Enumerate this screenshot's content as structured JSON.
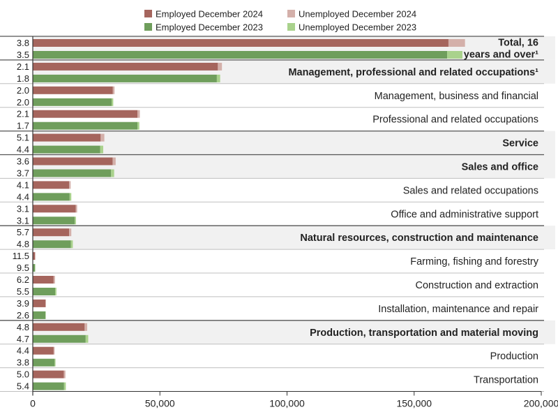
{
  "chart_data": {
    "type": "bar",
    "orientation": "horizontal",
    "stacked": true,
    "xlim": [
      0,
      200000
    ],
    "x_ticks": [
      0,
      50000,
      100000,
      150000,
      200000
    ],
    "x_tick_labels": [
      "0",
      "50,000",
      "100,000",
      "150,000",
      "200,000"
    ],
    "legend": {
      "placement": "top",
      "items": [
        {
          "label": "Employed December 2024",
          "color": "#a5655d"
        },
        {
          "label": "Unemployed December 2024",
          "color": "#d4b0aa"
        },
        {
          "label": "Employed December 2023",
          "color": "#6f9e5c"
        },
        {
          "label": "Unemployed December 2023",
          "color": "#a9d28c"
        }
      ]
    },
    "colors": {
      "employed_2024": "#a5655d",
      "unemployed_2024": "#d4b0aa",
      "employed_2023": "#6f9e5c",
      "unemployed_2023": "#a9d28c",
      "major_band": "#f1f1f1",
      "divider_major": "#555555",
      "divider_minor": "#bfbfbf",
      "axis": "#333333"
    },
    "categories": [
      {
        "label_lines": [
          "Total, 16",
          "years and over¹"
        ],
        "major": true,
        "rate_2024": "3.8",
        "rate_2023": "3.5",
        "employed_2024": 163500,
        "unemployed_2024": 6500,
        "employed_2023": 163000,
        "unemployed_2023": 6000
      },
      {
        "label_lines": [
          "Management, professional and related occupations¹"
        ],
        "major": true,
        "rate_2024": "2.1",
        "rate_2023": "1.8",
        "employed_2024": 72800,
        "unemployed_2024": 1600,
        "employed_2023": 72400,
        "unemployed_2023": 1300
      },
      {
        "label_lines": [
          "Management, business and financial"
        ],
        "major": false,
        "rate_2024": "2.0",
        "rate_2023": "2.0",
        "employed_2024": 31500,
        "unemployed_2024": 650,
        "employed_2023": 31000,
        "unemployed_2023": 650
      },
      {
        "label_lines": [
          "Professional and related occupations"
        ],
        "major": false,
        "rate_2024": "2.1",
        "rate_2023": "1.7",
        "employed_2024": 41200,
        "unemployed_2024": 900,
        "employed_2023": 41200,
        "unemployed_2023": 700
      },
      {
        "label_lines": [
          "Service"
        ],
        "major": true,
        "rate_2024": "5.1",
        "rate_2023": "4.4",
        "employed_2024": 26700,
        "unemployed_2024": 1450,
        "employed_2023": 26500,
        "unemployed_2023": 1200
      },
      {
        "label_lines": [
          "Sales and office"
        ],
        "major": true,
        "rate_2024": "3.6",
        "rate_2023": "3.7",
        "employed_2024": 31400,
        "unemployed_2024": 1200,
        "employed_2023": 30800,
        "unemployed_2023": 1200
      },
      {
        "label_lines": [
          "Sales and related occupations"
        ],
        "major": false,
        "rate_2024": "4.1",
        "rate_2023": "4.4",
        "employed_2024": 14300,
        "unemployed_2024": 600,
        "employed_2023": 14500,
        "unemployed_2023": 650
      },
      {
        "label_lines": [
          "Office and administrative support"
        ],
        "major": false,
        "rate_2024": "3.1",
        "rate_2023": "3.1",
        "employed_2024": 16900,
        "unemployed_2024": 550,
        "employed_2023": 16500,
        "unemployed_2023": 500
      },
      {
        "label_lines": [
          "Natural resources, construction and maintenance"
        ],
        "major": true,
        "rate_2024": "5.7",
        "rate_2023": "4.8",
        "employed_2024": 14300,
        "unemployed_2024": 850,
        "employed_2023": 15000,
        "unemployed_2023": 750
      },
      {
        "label_lines": [
          "Farming, fishing and forestry"
        ],
        "major": false,
        "rate_2024": "11.5",
        "rate_2023": "9.5",
        "employed_2024": 900,
        "unemployed_2024": 120,
        "employed_2023": 900,
        "unemployed_2023": 100
      },
      {
        "label_lines": [
          "Construction and extraction"
        ],
        "major": false,
        "rate_2024": "6.2",
        "rate_2023": "5.5",
        "employed_2024": 8200,
        "unemployed_2024": 540,
        "employed_2023": 8800,
        "unemployed_2023": 500
      },
      {
        "label_lines": [
          "Installation, maintenance and repair"
        ],
        "major": false,
        "rate_2024": "3.9",
        "rate_2023": "2.6",
        "employed_2024": 5000,
        "unemployed_2024": 200,
        "employed_2023": 5000,
        "unemployed_2023": 130
      },
      {
        "label_lines": [
          "Production, transportation and material moving"
        ],
        "major": true,
        "rate_2024": "4.8",
        "rate_2023": "4.7",
        "employed_2024": 20400,
        "unemployed_2024": 1000,
        "employed_2023": 20800,
        "unemployed_2023": 1000
      },
      {
        "label_lines": [
          "Production"
        ],
        "major": false,
        "rate_2024": "4.4",
        "rate_2023": "3.8",
        "employed_2024": 8200,
        "unemployed_2024": 380,
        "employed_2023": 8600,
        "unemployed_2023": 340
      },
      {
        "label_lines": [
          "Transportation"
        ],
        "major": false,
        "rate_2024": "5.0",
        "rate_2023": "5.4",
        "employed_2024": 12200,
        "unemployed_2024": 640,
        "employed_2023": 12300,
        "unemployed_2023": 700
      }
    ]
  }
}
